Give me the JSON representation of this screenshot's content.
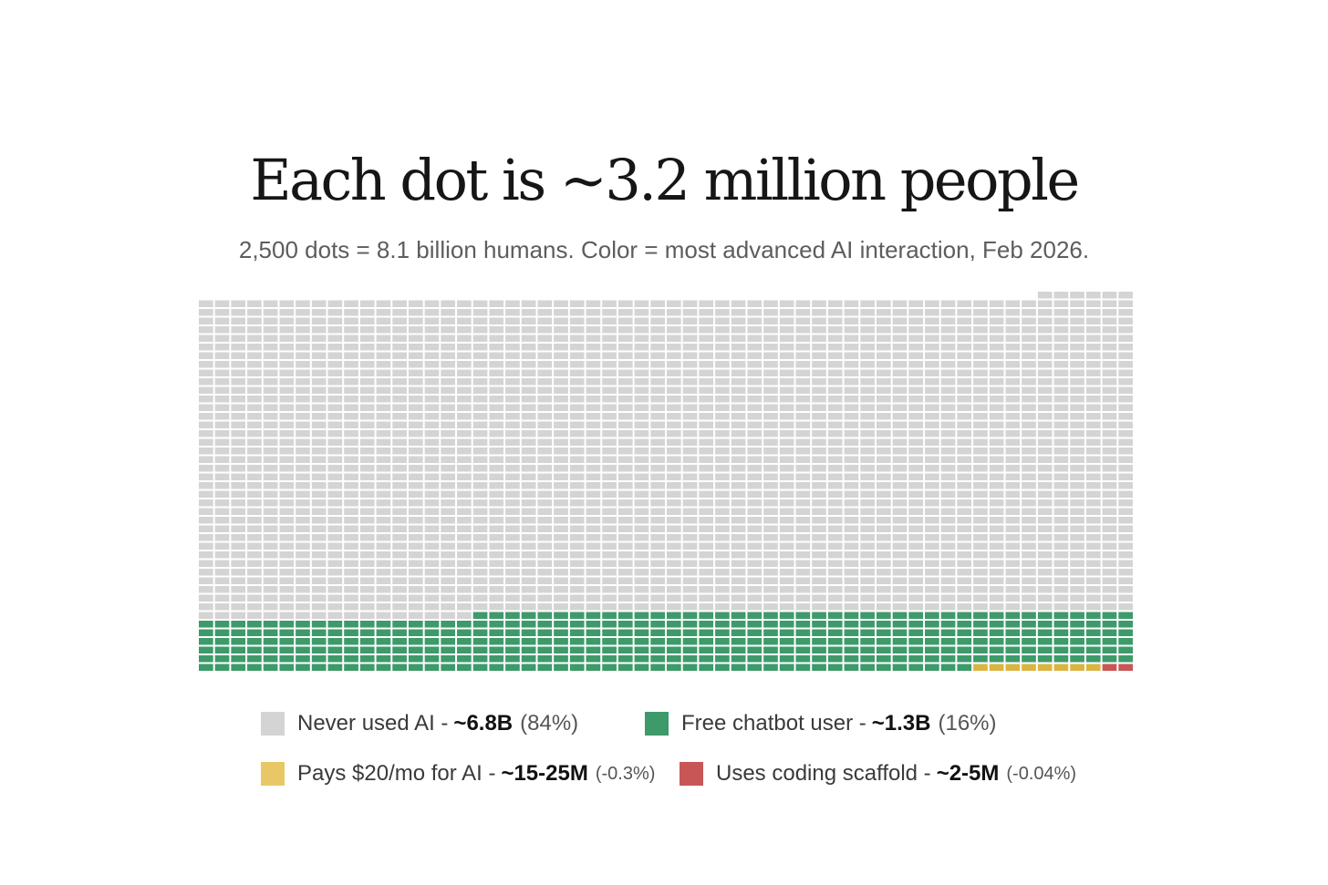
{
  "chart_data": {
    "type": "waffle",
    "title": "Each dot is ~3.2 million people",
    "subtitle": "2,500 dots = 8.1 billion humans. Color = most advanced AI interaction, Feb 2026.",
    "total_dots": 2500,
    "columns": 58,
    "categories": [
      {
        "key": "never",
        "label": "Never used AI - ",
        "value": "~6.8B",
        "pct": "(84%)",
        "dots": 2111,
        "color": "#d4d4d4"
      },
      {
        "key": "free",
        "label": "Free chatbot user - ",
        "value": "~1.3B",
        "pct": "(16%)",
        "dots": 379,
        "color": "#3e9a6b"
      },
      {
        "key": "pays",
        "label": "Pays $20/mo for AI - ",
        "value": "~15-25M",
        "pct": "(-0.3%)",
        "dots": 8,
        "color": "#dbb544"
      },
      {
        "key": "coding",
        "label": "Uses coding scaffold - ",
        "value": "~2-5M",
        "pct": "(-0.04%)",
        "dots": 2,
        "color": "#c85656"
      }
    ]
  }
}
